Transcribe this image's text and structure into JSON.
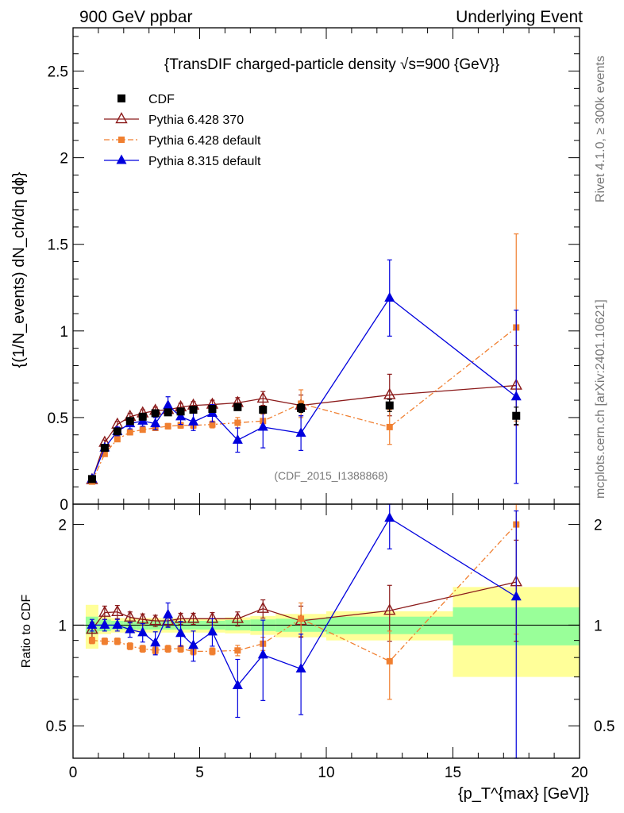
{
  "header": {
    "left": "900 GeV ppbar",
    "right": "Underlying Event"
  },
  "side": {
    "rivet": "Rivet 4.1.0, ≥ 300k events",
    "mcplots": "mcplots.cern.ch [arXiv:2401.10621]"
  },
  "chart_data": {
    "type": "scatter",
    "title": "{TransDIF charged-particle density √s=900 {GeV}}",
    "analysis": "(CDF_2015_I1388868)",
    "xlabel": "{p_T^{max} [GeV]}",
    "ylabel": "{(1/N_events) dN_ch/dη dϕ}",
    "ratio_ylabel": "Ratio to CDF",
    "xlim": [
      0,
      20
    ],
    "ylim": [
      0,
      2.75
    ],
    "ratio_ylim": [
      0.4,
      2.3
    ],
    "x_ticks": [
      "0",
      "5",
      "10",
      "15",
      "20"
    ],
    "y_ticks": [
      "0",
      "0.5",
      "1",
      "1.5",
      "2",
      "2.5"
    ],
    "ratio_y_ticks": [
      "0.5",
      "1",
      "2"
    ],
    "x": [
      0.75,
      1.25,
      1.75,
      2.25,
      2.75,
      3.25,
      3.75,
      4.25,
      4.75,
      5.5,
      6.5,
      7.5,
      9.0,
      12.5,
      17.5
    ],
    "series": [
      {
        "name": "CDF",
        "color": "#000000",
        "marker": "square",
        "values": [
          0.145,
          0.325,
          0.42,
          0.48,
          0.505,
          0.525,
          0.53,
          0.535,
          0.545,
          0.55,
          0.56,
          0.545,
          0.555,
          0.57,
          0.51
        ],
        "errors": [
          0.01,
          0.012,
          0.012,
          0.013,
          0.013,
          0.013,
          0.014,
          0.014,
          0.015,
          0.016,
          0.018,
          0.02,
          0.025,
          0.035,
          0.05
        ]
      },
      {
        "name": "Pythia 6.428 370",
        "color": "#8b1a1a",
        "marker": "open-triangle",
        "values": [
          0.14,
          0.355,
          0.46,
          0.505,
          0.525,
          0.54,
          0.545,
          0.56,
          0.57,
          0.575,
          0.585,
          0.61,
          0.57,
          0.63,
          0.685
        ],
        "errors": [
          0.008,
          0.015,
          0.018,
          0.02,
          0.02,
          0.02,
          0.02,
          0.022,
          0.022,
          0.025,
          0.03,
          0.04,
          0.06,
          0.12,
          0.23
        ]
      },
      {
        "name": "Pythia 6.428 default",
        "color": "#f07f30",
        "marker": "square-dashdot",
        "values": [
          0.13,
          0.29,
          0.375,
          0.415,
          0.43,
          0.44,
          0.45,
          0.455,
          0.455,
          0.46,
          0.47,
          0.48,
          0.58,
          0.445,
          1.02
        ],
        "errors": [
          0.006,
          0.012,
          0.014,
          0.015,
          0.015,
          0.015,
          0.016,
          0.017,
          0.018,
          0.02,
          0.03,
          0.04,
          0.08,
          0.1,
          0.54
        ]
      },
      {
        "name": "Pythia 8.315 default",
        "color": "#0000dd",
        "marker": "triangle",
        "values": [
          0.145,
          0.325,
          0.42,
          0.465,
          0.48,
          0.465,
          0.57,
          0.505,
          0.475,
          0.525,
          0.37,
          0.445,
          0.41,
          1.19,
          0.62
        ],
        "errors": [
          0.01,
          0.02,
          0.025,
          0.03,
          0.03,
          0.035,
          0.05,
          0.045,
          0.05,
          0.05,
          0.07,
          0.12,
          0.1,
          0.22,
          0.5
        ]
      }
    ],
    "ratio": {
      "band_edges": [
        0.5,
        1.0,
        1.5,
        2.0,
        2.5,
        3.0,
        3.5,
        4.0,
        4.5,
        5.0,
        6.0,
        7.0,
        8.0,
        10.0,
        15.0,
        20.0
      ],
      "stat": [
        0.06,
        0.04,
        0.03,
        0.03,
        0.03,
        0.03,
        0.03,
        0.03,
        0.03,
        0.03,
        0.035,
        0.04,
        0.045,
        0.06,
        0.13
      ],
      "total": [
        0.15,
        0.06,
        0.05,
        0.05,
        0.05,
        0.05,
        0.05,
        0.05,
        0.05,
        0.05,
        0.055,
        0.065,
        0.08,
        0.1,
        0.3
      ],
      "series": [
        {
          "name": "Pythia 6.428 370",
          "values": [
            0.97,
            1.09,
            1.095,
            1.055,
            1.04,
            1.03,
            1.03,
            1.045,
            1.045,
            1.045,
            1.045,
            1.12,
            1.03,
            1.105,
            1.345
          ],
          "errors": [
            0.05,
            0.05,
            0.05,
            0.04,
            0.04,
            0.04,
            0.04,
            0.04,
            0.04,
            0.045,
            0.05,
            0.07,
            0.11,
            0.21,
            0.45
          ]
        },
        {
          "name": "Pythia 6.428 default",
          "values": [
            0.9,
            0.895,
            0.895,
            0.865,
            0.85,
            0.84,
            0.85,
            0.85,
            0.835,
            0.835,
            0.84,
            0.88,
            1.045,
            0.78,
            2.0
          ],
          "errors": [
            0.02,
            0.02,
            0.02,
            0.02,
            0.02,
            0.02,
            0.02,
            0.02,
            0.02,
            0.02,
            0.03,
            0.04,
            0.12,
            0.18,
            1.06
          ]
        },
        {
          "name": "Pythia 8.315 default",
          "values": [
            1.0,
            1.0,
            1.0,
            0.97,
            0.95,
            0.885,
            1.075,
            0.945,
            0.87,
            0.955,
            0.66,
            0.815,
            0.74,
            2.09,
            1.215
          ],
          "errors": [
            0.04,
            0.04,
            0.04,
            0.05,
            0.06,
            0.07,
            0.09,
            0.08,
            0.09,
            0.09,
            0.13,
            0.22,
            0.2,
            0.4,
            0.98
          ]
        }
      ]
    }
  }
}
